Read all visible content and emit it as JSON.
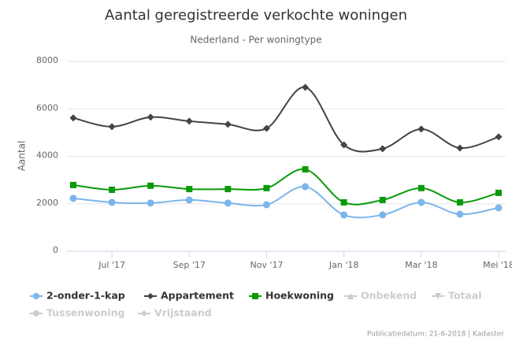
{
  "chart_data": {
    "type": "line",
    "title": "Aantal geregistreerde verkochte woningen",
    "subtitle": "Nederland - Per woningtype",
    "y_label": "Aantal",
    "credits": "Publicatiedatum: 21-6-2018 | Kadaster",
    "categories": [
      null,
      "Jul '17",
      null,
      "Sep '17",
      null,
      "Nov '17",
      null,
      "Jan '18",
      null,
      "Mar '18",
      null,
      "Mei '18"
    ],
    "ylim": [
      0,
      8000
    ],
    "yticks": [
      0,
      2000,
      4000,
      6000,
      8000
    ],
    "grid": true,
    "series": [
      {
        "name": "2-onder-1-kap",
        "color": "#7cb5ec",
        "marker": "circle",
        "values": [
          2230,
          2060,
          2030,
          2160,
          2030,
          1960,
          2720,
          1530,
          1530,
          2060,
          1560,
          1830
        ]
      },
      {
        "name": "Appartement",
        "color": "#434348",
        "marker": "diamond",
        "values": [
          5620,
          5250,
          5650,
          5480,
          5350,
          5180,
          6910,
          4480,
          4320,
          5150,
          4350,
          4820
        ]
      },
      {
        "name": "Hoekwoning",
        "color": "#0a9a0a",
        "marker": "square",
        "values": [
          2790,
          2590,
          2760,
          2620,
          2620,
          2660,
          3450,
          2060,
          2160,
          2660,
          2060,
          2460
        ]
      },
      {
        "name": "Onbekend",
        "color": "#cccccc",
        "marker": "triangle",
        "visible": false
      },
      {
        "name": "Totaal",
        "color": "#cccccc",
        "marker": "triangle-down",
        "visible": false
      },
      {
        "name": "Tussenwoning",
        "color": "#cccccc",
        "marker": "circle",
        "visible": false
      },
      {
        "name": "Vrijstaand",
        "color": "#cccccc",
        "marker": "diamond",
        "visible": false
      }
    ]
  }
}
